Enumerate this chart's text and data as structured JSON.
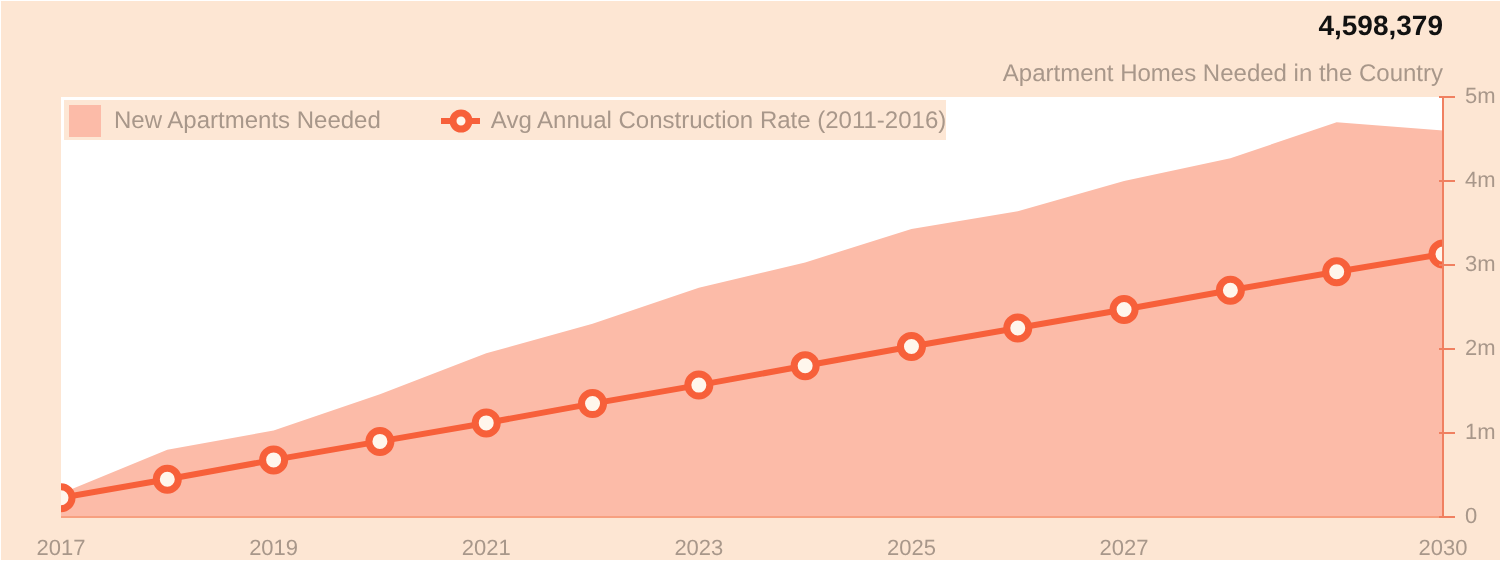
{
  "chart_data": {
    "type": "area",
    "x": [
      2017,
      2018,
      2019,
      2020,
      2021,
      2022,
      2023,
      2024,
      2025,
      2026,
      2027,
      2028,
      2029,
      2030
    ],
    "series": [
      {
        "name": "New Apartments Needed",
        "color": "#fcbba8",
        "values": [
          0.28,
          0.8,
          1.03,
          1.46,
          1.95,
          2.3,
          2.73,
          3.03,
          3.43,
          3.64,
          4.0,
          4.27,
          4.7,
          4.6
        ]
      },
      {
        "name": "Avg Annual Construction Rate (2011-2016)",
        "type": "line",
        "color": "#f7603a",
        "marker": "circle",
        "values": [
          0.23,
          0.45,
          0.68,
          0.9,
          1.12,
          1.35,
          1.57,
          1.8,
          2.03,
          2.25,
          2.47,
          2.7,
          2.92,
          3.13
        ]
      }
    ],
    "xlim": [
      2017,
      2030
    ],
    "xticks": [
      2017,
      2019,
      2021,
      2023,
      2025,
      2027,
      2030
    ],
    "ylim": [
      0,
      5
    ],
    "yticks": [
      0,
      {
        "value": 1,
        "label": "1m"
      },
      {
        "value": 2,
        "label": "2m"
      },
      {
        "value": 3,
        "label": "3m"
      },
      {
        "value": 4,
        "label": "4m"
      },
      {
        "value": 5,
        "label": "5m"
      }
    ],
    "grid": false,
    "legend": "top left",
    "annotations": [
      "4,598,379",
      "Apartment Homes Needed in the Country"
    ]
  }
}
